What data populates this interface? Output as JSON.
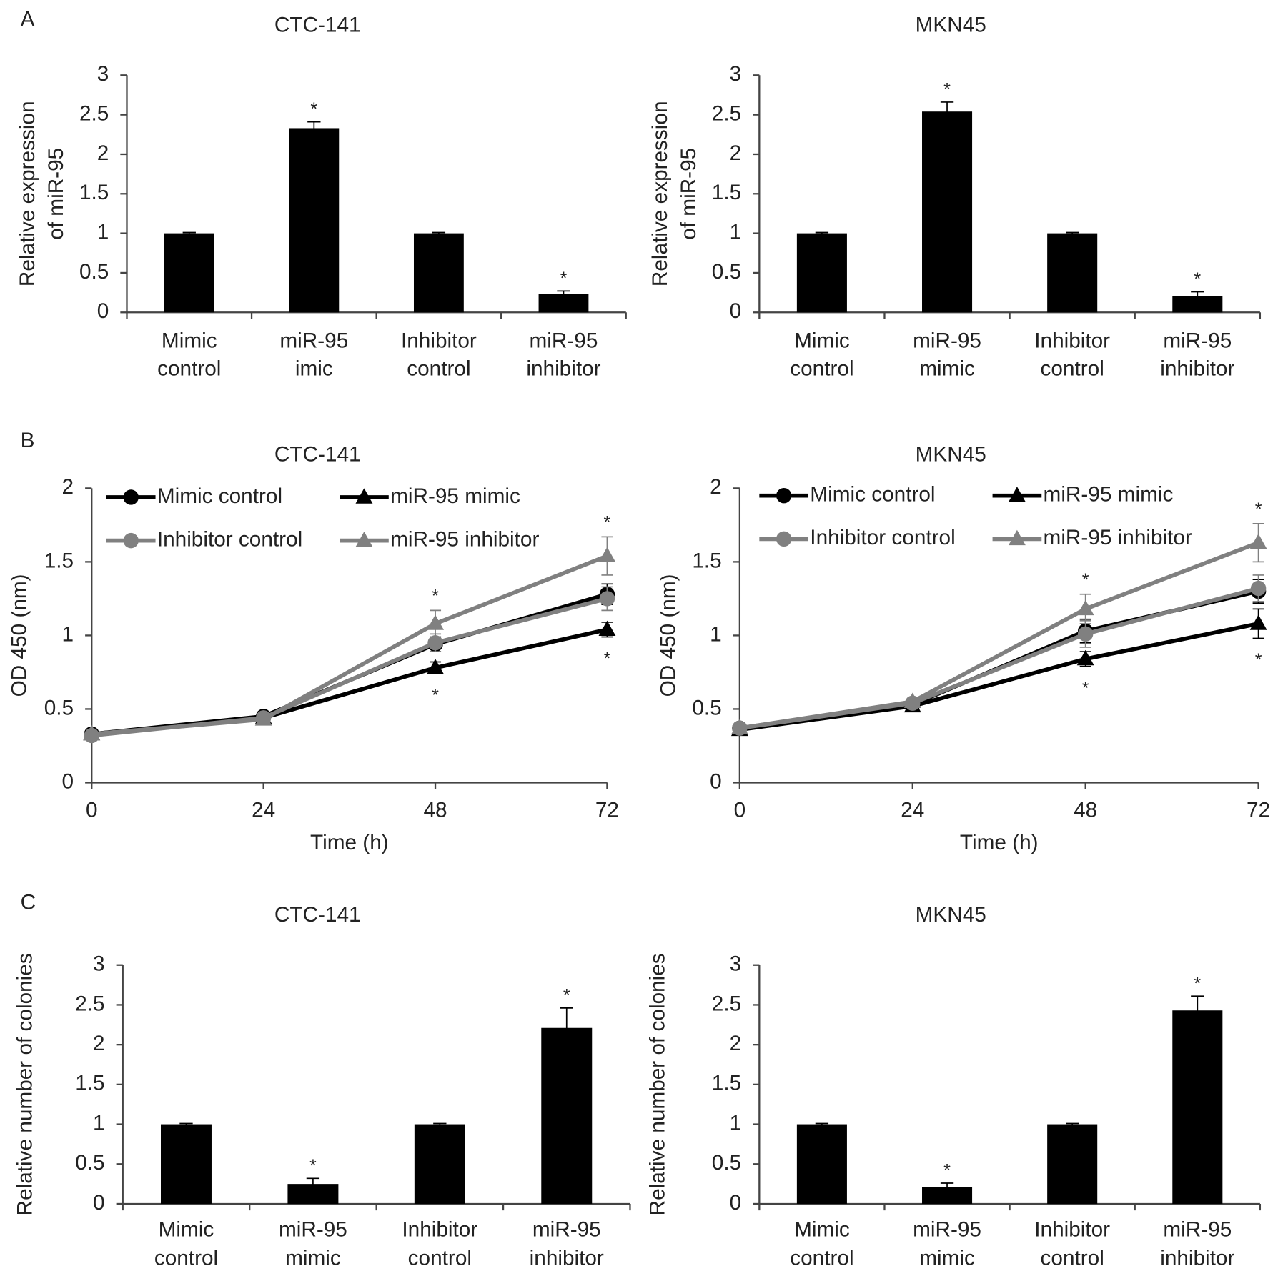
{
  "chart_data": [
    {
      "type": "bar",
      "panel_label": "A",
      "title": "CTC-141",
      "ylabel": [
        "Relative expression",
        "of miR-95"
      ],
      "categories": [
        [
          "Mimic",
          "control"
        ],
        [
          "miR-95",
          "imic"
        ],
        [
          "Inhibitor",
          "control"
        ],
        [
          "miR-95",
          "inhibitor"
        ]
      ],
      "values": [
        1,
        2.33,
        1,
        0.23
      ],
      "errors": [
        0.01,
        0.08,
        0.01,
        0.04
      ],
      "annotations": [
        null,
        "*",
        null,
        "*"
      ],
      "color": "#000000",
      "ylim": [
        0,
        3
      ],
      "yticks": [
        0,
        0.5,
        1,
        1.5,
        2,
        2.5,
        3
      ]
    },
    {
      "type": "bar",
      "title": "MKN45",
      "ylabel": [
        "Relative expression",
        "of miR-95"
      ],
      "categories": [
        [
          "Mimic",
          "control"
        ],
        [
          "miR-95",
          "mimic"
        ],
        [
          "Inhibitor",
          "control"
        ],
        [
          "miR-95",
          "inhibitor"
        ]
      ],
      "values": [
        1,
        2.54,
        1,
        0.21
      ],
      "errors": [
        0.01,
        0.12,
        0.01,
        0.05
      ],
      "annotations": [
        null,
        "*",
        null,
        "*"
      ],
      "color": "#000000",
      "ylim": [
        0,
        3
      ],
      "yticks": [
        0,
        0.5,
        1,
        1.5,
        2,
        2.5,
        3
      ]
    },
    {
      "type": "line",
      "panel_label": "B",
      "title": "CTC-141",
      "ylabel": [
        "OD 450 (nm)"
      ],
      "xlabel": "Time (h)",
      "x": [
        0,
        24,
        48,
        72
      ],
      "xlim": [
        0,
        72
      ],
      "xticks": [
        0,
        24,
        48,
        72
      ],
      "ylim": [
        0,
        2
      ],
      "yticks": [
        0,
        0.5,
        1,
        1.5,
        2
      ],
      "legend": "upper left",
      "series": [
        {
          "name": "Mimic control",
          "color": "#000000",
          "marker": "circle",
          "values": [
            0.33,
            0.45,
            0.94,
            1.28
          ],
          "errors": [
            0.02,
            0.02,
            0.05,
            0.07
          ]
        },
        {
          "name": "miR-95 mimic",
          "color": "#000000",
          "marker": "triangle",
          "values": [
            0.33,
            0.44,
            0.78,
            1.04
          ],
          "errors": [
            0.02,
            0.02,
            0.04,
            0.05
          ],
          "annotations": [
            null,
            null,
            "*",
            "*"
          ],
          "annotation_position": "below"
        },
        {
          "name": "Inhibitor control",
          "color": "#808080",
          "marker": "circle",
          "values": [
            0.32,
            0.44,
            0.95,
            1.25
          ],
          "errors": [
            0.02,
            0.02,
            0.06,
            0.08
          ]
        },
        {
          "name": "miR-95 inhibitor",
          "color": "#808080",
          "marker": "triangle",
          "values": [
            0.33,
            0.43,
            1.08,
            1.54
          ],
          "errors": [
            0.02,
            0.02,
            0.09,
            0.13
          ],
          "annotations": [
            null,
            null,
            "*",
            "*"
          ],
          "annotation_position": "above"
        }
      ]
    },
    {
      "type": "line",
      "title": "MKN45",
      "ylabel": [
        "OD 450 (nm)"
      ],
      "xlabel": "Time (h)",
      "x": [
        0,
        24,
        48,
        72
      ],
      "xlim": [
        0,
        72
      ],
      "xticks": [
        0,
        24,
        48,
        72
      ],
      "ylim": [
        0,
        2
      ],
      "yticks": [
        0,
        0.5,
        1,
        1.5,
        2
      ],
      "legend": "upper left",
      "series": [
        {
          "name": "Mimic control",
          "color": "#000000",
          "marker": "circle",
          "values": [
            0.37,
            0.53,
            1.03,
            1.3
          ],
          "errors": [
            0.02,
            0.02,
            0.08,
            0.08
          ]
        },
        {
          "name": "miR-95 mimic",
          "color": "#000000",
          "marker": "triangle",
          "values": [
            0.36,
            0.52,
            0.84,
            1.08
          ],
          "errors": [
            0.02,
            0.02,
            0.05,
            0.1
          ],
          "annotations": [
            null,
            null,
            "*",
            "*"
          ],
          "annotation_position": "below"
        },
        {
          "name": "Inhibitor control",
          "color": "#808080",
          "marker": "circle",
          "values": [
            0.37,
            0.54,
            1.01,
            1.32
          ],
          "errors": [
            0.02,
            0.02,
            0.09,
            0.09
          ]
        },
        {
          "name": "miR-95 inhibitor",
          "color": "#808080",
          "marker": "triangle",
          "values": [
            0.37,
            0.55,
            1.18,
            1.63
          ],
          "errors": [
            0.02,
            0.02,
            0.1,
            0.13
          ],
          "annotations": [
            null,
            null,
            "*",
            "*"
          ],
          "annotation_position": "above"
        }
      ]
    },
    {
      "type": "bar",
      "panel_label": "C",
      "title": "CTC-141",
      "ylabel": [
        "Relative number of colonies"
      ],
      "categories": [
        [
          "Mimic",
          "control"
        ],
        [
          "miR-95",
          "mimic"
        ],
        [
          "Inhibitor",
          "control"
        ],
        [
          "miR-95",
          "inhibitor"
        ]
      ],
      "values": [
        1,
        0.25,
        1,
        2.21
      ],
      "errors": [
        0.01,
        0.07,
        0.01,
        0.25
      ],
      "annotations": [
        null,
        "*",
        null,
        "*"
      ],
      "color": "#000000",
      "ylim": [
        0,
        3
      ],
      "yticks": [
        0,
        0.5,
        1,
        1.5,
        2,
        2.5,
        3
      ]
    },
    {
      "type": "bar",
      "title": "MKN45",
      "ylabel": [
        "Relative number of colonies"
      ],
      "categories": [
        [
          "Mimic",
          "control"
        ],
        [
          "miR-95",
          "mimic"
        ],
        [
          "Inhibitor",
          "control"
        ],
        [
          "miR-95",
          "inhibitor"
        ]
      ],
      "values": [
        1,
        0.21,
        1,
        2.43
      ],
      "errors": [
        0.01,
        0.05,
        0.01,
        0.18
      ],
      "annotations": [
        null,
        "*",
        null,
        "*"
      ],
      "color": "#000000",
      "ylim": [
        0,
        3
      ],
      "yticks": [
        0,
        0.5,
        1,
        1.5,
        2,
        2.5,
        3
      ]
    }
  ]
}
